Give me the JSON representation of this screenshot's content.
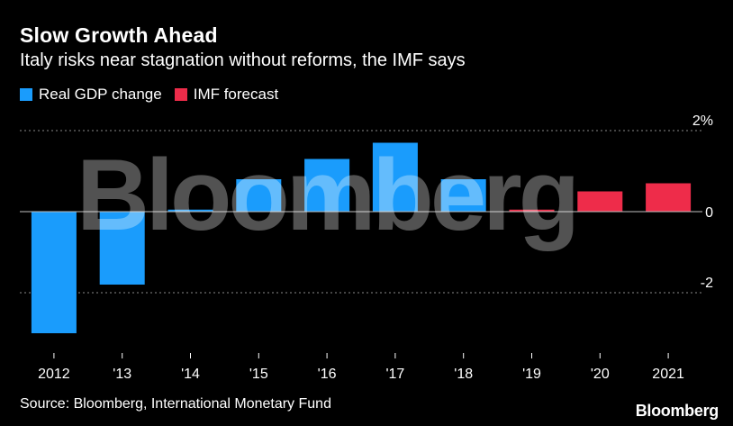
{
  "header": {
    "title": "Slow Growth Ahead",
    "subtitle": "Italy risks near stagnation without reforms, the IMF says"
  },
  "legend": [
    {
      "label": "Real GDP change",
      "color": "#1a9cfc"
    },
    {
      "label": "IMF forecast",
      "color": "#ee2c4a"
    }
  ],
  "chart_data": {
    "type": "bar",
    "categories": [
      "2012",
      "'13",
      "'14",
      "'15",
      "'16",
      "'17",
      "'18",
      "'19",
      "'20",
      "2021"
    ],
    "series": [
      {
        "name": "Real GDP change",
        "values": [
          -3.0,
          -1.8,
          0.05,
          0.8,
          1.3,
          1.7,
          0.8,
          null,
          null,
          null
        ]
      },
      {
        "name": "IMF forecast",
        "values": [
          null,
          null,
          null,
          null,
          null,
          null,
          null,
          0.05,
          0.5,
          0.7
        ]
      }
    ],
    "y_ticks": [
      "2%",
      "0",
      "-2"
    ],
    "ylim": [
      -3.0,
      2.0
    ],
    "grid": "dotted at 2 and -2; solid zero line"
  },
  "footer": {
    "source": "Source: Bloomberg, International Monetary Fund",
    "brand": "Bloomberg"
  },
  "watermark": "Bloomberg"
}
